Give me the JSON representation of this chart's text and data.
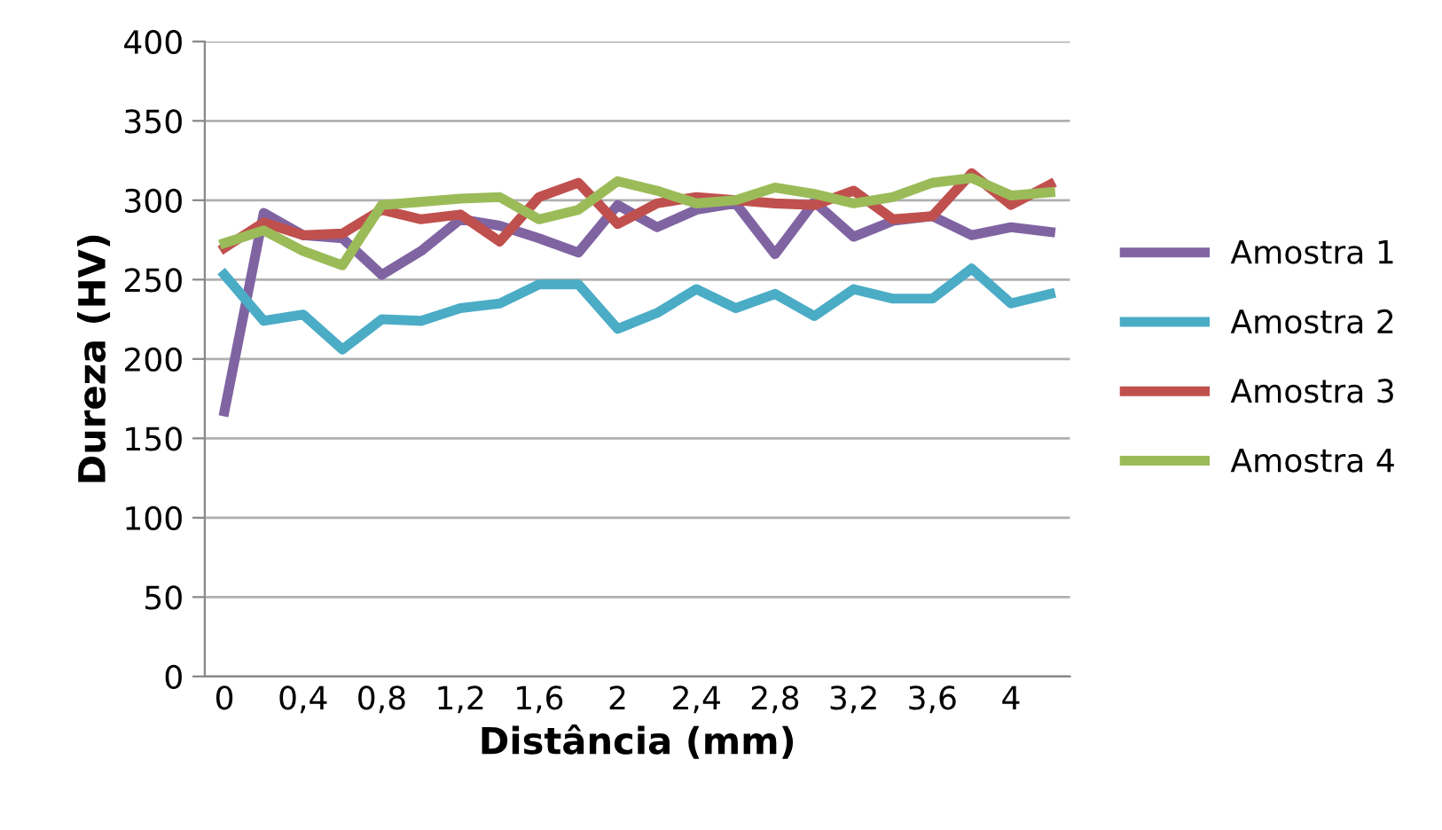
{
  "chart_data": {
    "type": "line",
    "xlabel": "Distância (mm)",
    "ylabel": "Dureza (HV)",
    "categories": [
      "0",
      null,
      "0,4",
      null,
      "0,8",
      null,
      "1,2",
      null,
      "1,6",
      null,
      "2",
      null,
      "2,4",
      null,
      "2,8",
      null,
      "3,2",
      null,
      "3,6",
      null,
      "4",
      null
    ],
    "series": [
      {
        "name": "Amostra 1",
        "color": "#8064a2",
        "values": [
          167,
          292,
          278,
          276,
          253,
          268,
          288,
          284,
          276,
          267,
          297,
          283,
          294,
          298,
          266,
          299,
          277,
          287,
          290,
          278,
          283,
          280
        ]
      },
      {
        "name": "Amostra 2",
        "color": "#4bacc6",
        "values": [
          253,
          224,
          228,
          206,
          225,
          224,
          232,
          235,
          247,
          247,
          219,
          229,
          244,
          232,
          241,
          227,
          244,
          238,
          238,
          257,
          235,
          241
        ]
      },
      {
        "name": "Amostra 3",
        "color": "#c0504d",
        "values": [
          270,
          286,
          278,
          279,
          294,
          288,
          291,
          274,
          302,
          311,
          285,
          298,
          302,
          300,
          298,
          297,
          306,
          288,
          290,
          317,
          297,
          310
        ]
      },
      {
        "name": "Amostra 4",
        "color": "#9bbb59",
        "values": [
          273,
          281,
          268,
          259,
          297,
          299,
          301,
          302,
          288,
          294,
          312,
          306,
          298,
          300,
          308,
          304,
          298,
          302,
          311,
          314,
          303,
          305
        ]
      }
    ],
    "ylim": [
      0,
      400
    ],
    "yticks": [
      0,
      50,
      100,
      150,
      200,
      250,
      300,
      350,
      400
    ],
    "grid": "y",
    "legend": "right",
    "marker": "none",
    "line_style": "solid"
  }
}
